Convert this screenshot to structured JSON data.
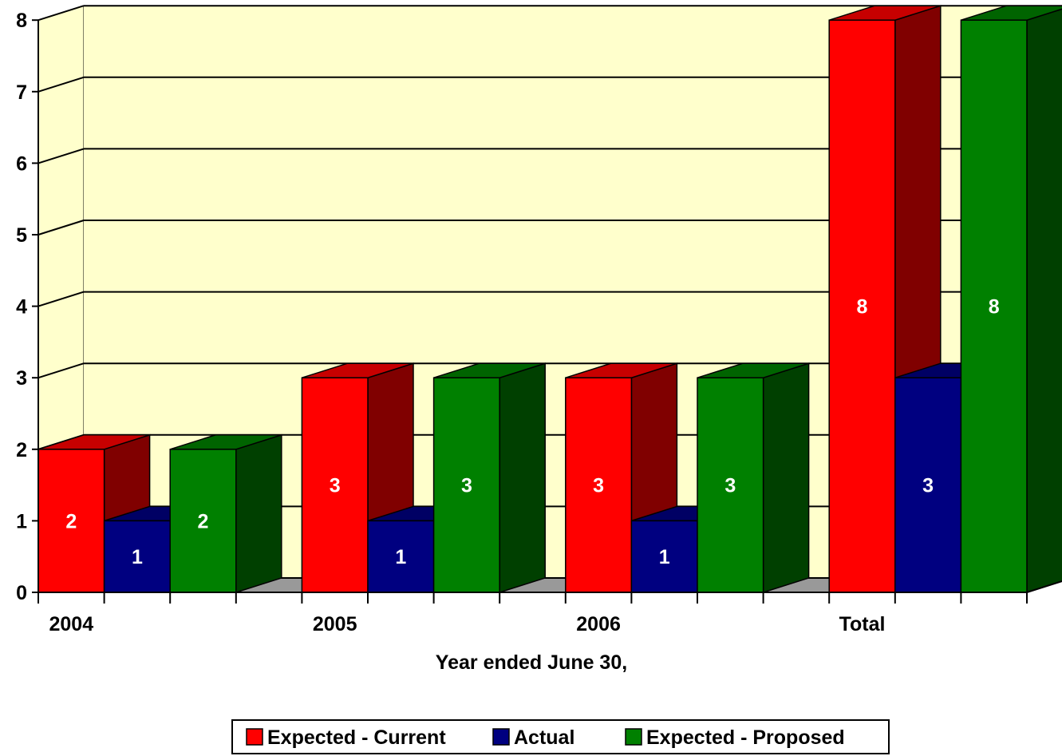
{
  "chart_data": {
    "type": "bar",
    "title": "",
    "xlabel": "Year ended June 30,",
    "ylabel": "",
    "categories": [
      "2004",
      "2005",
      "2006",
      "Total"
    ],
    "series": [
      {
        "name": "Expected - Current",
        "color": "#ff0000",
        "values": [
          2,
          3,
          3,
          8
        ]
      },
      {
        "name": "Actual",
        "color": "#000080",
        "values": [
          1,
          1,
          1,
          3
        ]
      },
      {
        "name": "Expected - Proposed",
        "color": "#008000",
        "values": [
          2,
          3,
          3,
          8
        ]
      }
    ],
    "ylim": [
      0,
      8
    ],
    "yticks": [
      "0",
      "1",
      "2",
      "3",
      "4",
      "5",
      "6",
      "7",
      "8"
    ],
    "grid": true,
    "style": "3d-clustered",
    "wall_color": "#ffffcc",
    "floor_color": "#999999",
    "data_labels": true,
    "legend_position": "bottom"
  }
}
